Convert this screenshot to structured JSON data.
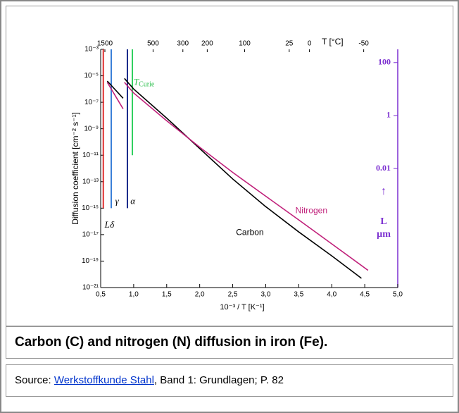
{
  "chart_data": {
    "type": "line",
    "xlabel": "10⁻³ / T  [K⁻¹]",
    "ylabel": "Diffusion coefficient  [cm⁻² s⁻¹]",
    "top_axis_label": "T [°C]",
    "top_ticks": [
      1500,
      500,
      300,
      200,
      100,
      25,
      0,
      -50
    ],
    "y2label": "L",
    "y2unit": "µm",
    "xlim": [
      0.5,
      5.0
    ],
    "xticks": [
      {
        "value": 0.5,
        "label": "0,5"
      },
      {
        "value": 1.0,
        "label": "1,0"
      },
      {
        "value": 1.5,
        "label": "1,5"
      },
      {
        "value": 2.0,
        "label": "2,0"
      },
      {
        "value": 2.5,
        "label": "2,5"
      },
      {
        "value": 3.0,
        "label": "3,0"
      },
      {
        "value": 3.5,
        "label": "3,5"
      },
      {
        "value": 4.0,
        "label": "4,0"
      },
      {
        "value": 4.5,
        "label": "4,5"
      },
      {
        "value": 5.0,
        "label": "5,0"
      }
    ],
    "ylim": [
      1e-21,
      0.001
    ],
    "ylog": true,
    "yticks": [
      {
        "value": 0.001,
        "label": "10⁻³"
      },
      {
        "value": 1e-05,
        "label": "10⁻⁵"
      },
      {
        "value": 1e-07,
        "label": "10⁻⁷"
      },
      {
        "value": 1e-09,
        "label": "10⁻⁹"
      },
      {
        "value": 1e-11,
        "label": "10⁻¹¹"
      },
      {
        "value": 1e-13,
        "label": "10⁻¹³"
      },
      {
        "value": 1e-15,
        "label": "10⁻¹⁵"
      },
      {
        "value": 1e-17,
        "label": "10⁻¹⁷"
      },
      {
        "value": 1e-19,
        "label": "10⁻¹⁹"
      },
      {
        "value": 1e-21,
        "label": "10⁻²¹"
      }
    ],
    "y2lim": [
      316,
      3.2e-07
    ],
    "y2log": true,
    "y2ticks": [
      100,
      1,
      0.01
    ],
    "y2color": "#7b2fd0",
    "x": [
      0.6,
      0.84,
      0.85,
      0.86,
      1.0,
      1.5,
      2.0,
      2.5,
      3.0,
      3.5,
      4.0,
      4.45
    ],
    "series": [
      {
        "name": "Carbon",
        "color": "#000000",
        "values": [
          4e-06,
          2e-07,
          null,
          6.3e-06,
          1e-06,
          6.3e-09,
          3.2e-11,
          1.6e-13,
          1.3e-15,
          1.6e-17,
          2.5e-19,
          5e-21
        ]
      },
      {
        "name": "Nitrogen",
        "color": "#c0207a",
        "x": [
          0.6,
          0.84,
          0.85,
          0.86,
          1.0,
          1.5,
          2.0,
          2.5,
          3.0,
          3.5,
          4.0,
          4.55
        ],
        "values": [
          3.2e-06,
          3.2e-08,
          null,
          3.2e-06,
          5e-07,
          4e-09,
          4e-11,
          5e-13,
          8e-15,
          1.3e-16,
          2e-18,
          2e-20
        ]
      }
    ],
    "phase_lines": [
      {
        "x": 0.54,
        "bottom": 1e-15,
        "color": "#e03030"
      },
      {
        "x": 0.66,
        "bottom": 1e-15,
        "color": "#3a7fd8"
      },
      {
        "x": 0.905,
        "bottom": 1e-15,
        "color": "#1a2a8a"
      },
      {
        "x": 0.98,
        "bottom": 1e-11,
        "color": "#30d060"
      }
    ],
    "annotations": [
      {
        "text": "T",
        "sub": "Curie",
        "x": 1.0,
        "y": 3e-06,
        "color": "#30c050"
      },
      {
        "text": "γ",
        "x": 0.72,
        "y": 3e-15,
        "color": "#000000"
      },
      {
        "text": "α",
        "x": 0.95,
        "y": 3e-15,
        "color": "#000000"
      },
      {
        "text": "δ",
        "x": 0.64,
        "y": 5e-17,
        "color": "#000000"
      },
      {
        "text": "L",
        "x": 0.56,
        "y": 5e-17,
        "color": "#000000"
      },
      {
        "text": "Nitrogen",
        "x": 3.45,
        "y": 6e-16,
        "color": "#c0207a"
      },
      {
        "text": "Carbon",
        "x": 2.55,
        "y": 1.3e-17,
        "color": "#000000"
      }
    ]
  },
  "caption": "Carbon (C) and nitrogen (N) diffusion in iron (Fe).",
  "source": {
    "prefix": "Source: ",
    "link": "Werkstoffkunde Stahl",
    "rest": ", Band 1: Grundlagen; P. 82"
  }
}
